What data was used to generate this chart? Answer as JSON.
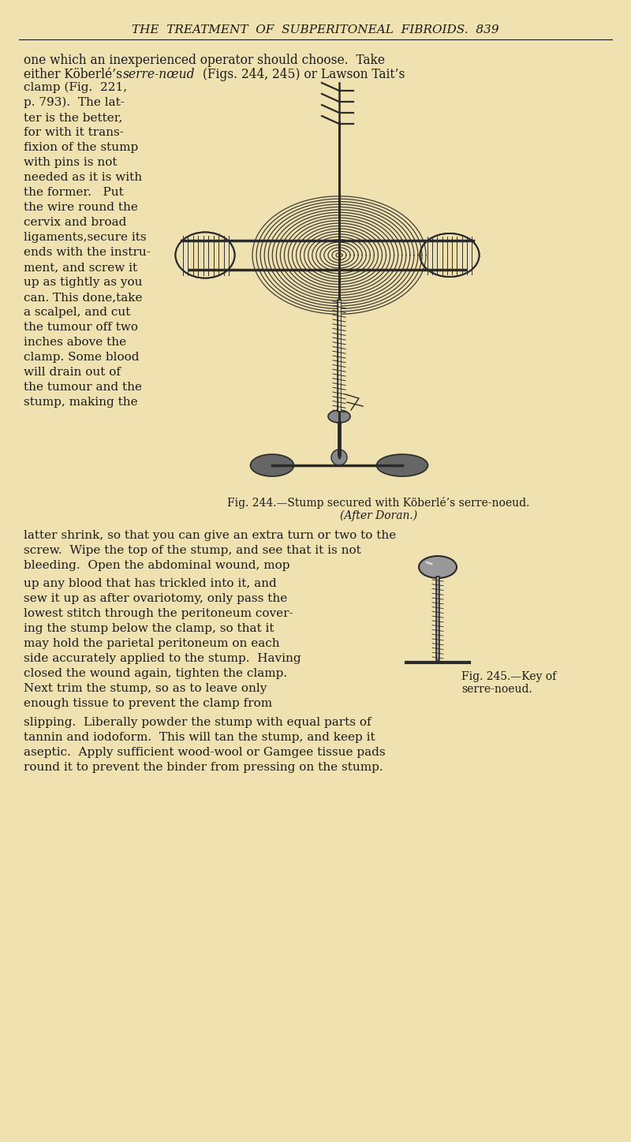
{
  "background_color": "#F0E2B0",
  "text_color": "#1a1a1a",
  "fig_color": "#2a2a2a",
  "header_text": "THE  TREATMENT  OF  SUBPERITONEAL  FIBROIDS.  839",
  "line1": "one which an inexperienced operator should choose.  Take",
  "line2a": "either Köberlé’s ",
  "line2b": "serre-nœud",
  "line2c": " (Figs. 244, 245) or Lawson Tait’s",
  "left_col_lines": [
    "clamp (Fig.  221,",
    "p. 793).  The lat-",
    "ter is the better,",
    "for with it trans-",
    "fixion of the stump",
    "with pins is not",
    "needed as it is with",
    "the former.   Put",
    "the wire round the",
    "cervix and broad",
    "ligaments,secure its",
    "ends with the instru-",
    "ment, and screw it",
    "up as tightly as you",
    "can. This done,take",
    "a scalpel, and cut",
    "the tumour off two",
    "inches above the",
    "clamp. Some blood",
    "will drain out of",
    "the tumour and the",
    "stump, making the"
  ],
  "fig244_caption_line1": "Fig. 244.—Stump secured with Köberlé’s serre-noeud.",
  "fig244_caption_line2": "(After Doran.)",
  "full_lines_mid": [
    "latter shrink, so that you can give an extra turn or two to the",
    "screw.  Wipe the top of the stump, and see that it is not",
    "bleeding.  Open the abdominal wound, mop"
  ],
  "left_col2_lines": [
    "up any blood that has trickled into it, and",
    "sew it up as after ovariotomy, only pass the",
    "lowest stitch through the peritoneum cover-",
    "ing the stump below the clamp, so that it",
    "may hold the parietal peritoneum on each",
    "side accurately applied to the stump.  Having",
    "closed the wound again, tighten the clamp.",
    "Next trim the stump, so as to leave only",
    "enough tissue to prevent the clamp from"
  ],
  "fig245_caption_line1": "Fig. 245.—Key of",
  "fig245_caption_line2": "serre-noeud.",
  "bottom_full_lines": [
    "slipping.  Liberally powder the stump with equal parts of",
    "tannin and iodoform.  This will tan the stump, and keep it",
    "aseptic.  Apply sufficient wood-wool or Gamgee tissue pads",
    "round it to prevent the binder from pressing on the stump."
  ]
}
